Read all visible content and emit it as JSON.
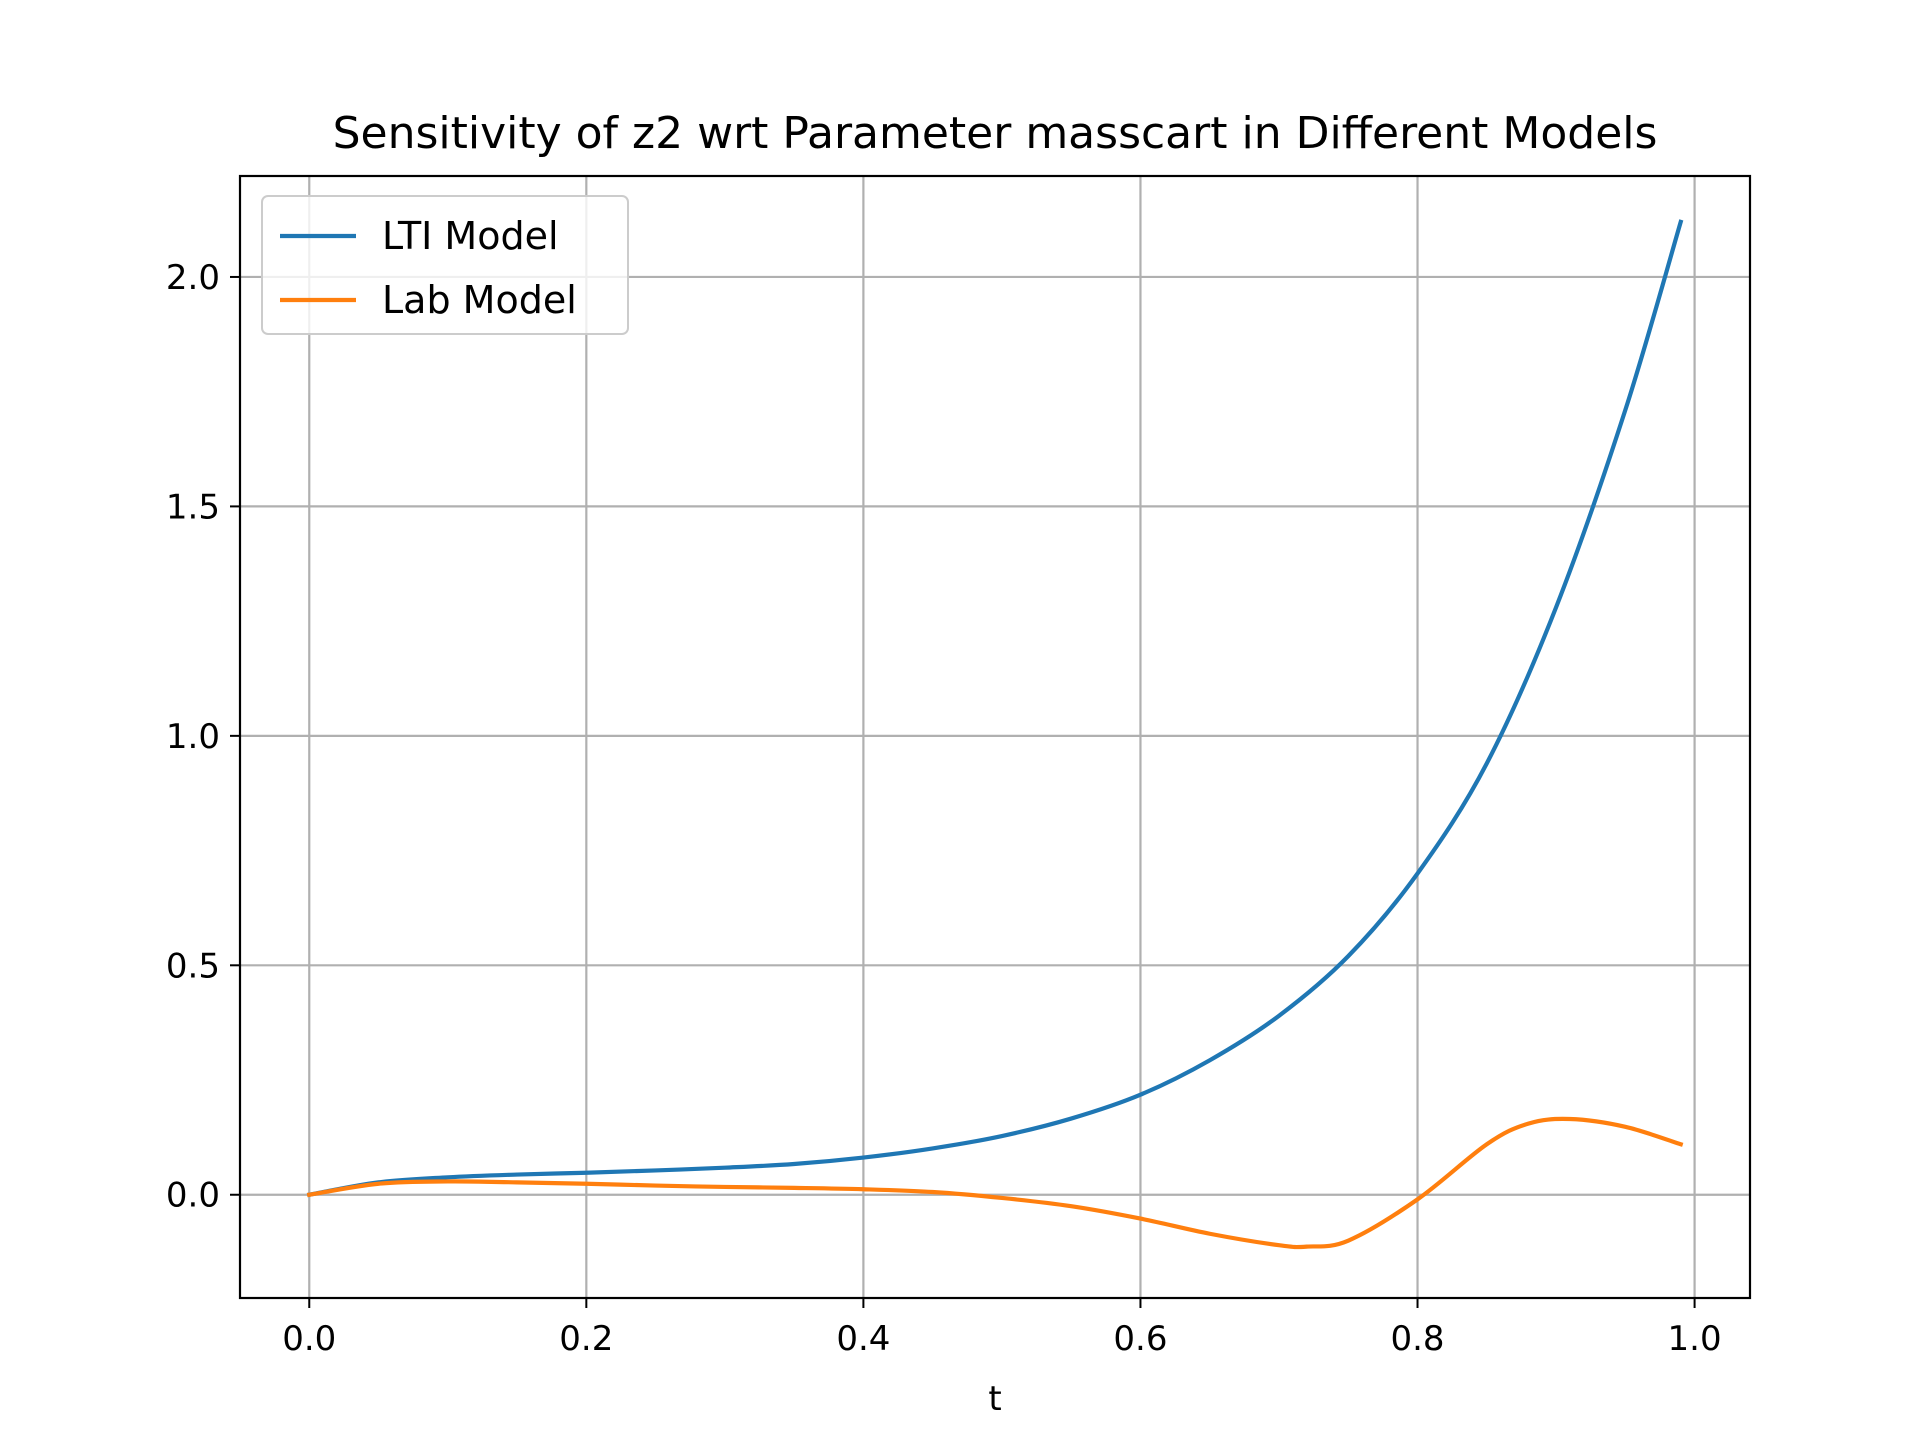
{
  "chart_data": {
    "type": "line",
    "title": "Sensitivity of z2 wrt Parameter masscart in Different Models",
    "xlabel": "t",
    "ylabel": "",
    "xlim": [
      -0.05,
      1.04
    ],
    "ylim": [
      -0.225,
      2.22
    ],
    "xticks": [
      0.0,
      0.2,
      0.4,
      0.6,
      0.8,
      1.0
    ],
    "xtick_labels": [
      "0.0",
      "0.2",
      "0.4",
      "0.6",
      "0.8",
      "1.0"
    ],
    "yticks": [
      0.0,
      0.5,
      1.0,
      1.5,
      2.0
    ],
    "ytick_labels": [
      "0.0",
      "0.5",
      "1.0",
      "1.5",
      "2.0"
    ],
    "grid": true,
    "legend_position": "top-left",
    "series": [
      {
        "name": "LTI Model",
        "color": "#1f77b4",
        "x": [
          0.0,
          0.05,
          0.1,
          0.15,
          0.2,
          0.25,
          0.3,
          0.35,
          0.4,
          0.45,
          0.5,
          0.55,
          0.6,
          0.65,
          0.7,
          0.75,
          0.8,
          0.85,
          0.9,
          0.95,
          0.99
        ],
        "y": [
          0.0,
          0.027,
          0.038,
          0.044,
          0.048,
          0.053,
          0.059,
          0.067,
          0.081,
          0.101,
          0.128,
          0.166,
          0.218,
          0.293,
          0.39,
          0.52,
          0.7,
          0.94,
          1.28,
          1.71,
          2.12
        ]
      },
      {
        "name": "Lab Model",
        "color": "#ff7f0e",
        "x": [
          0.0,
          0.05,
          0.1,
          0.15,
          0.2,
          0.25,
          0.3,
          0.35,
          0.4,
          0.45,
          0.5,
          0.55,
          0.6,
          0.65,
          0.7,
          0.72,
          0.75,
          0.8,
          0.85,
          0.88,
          0.91,
          0.95,
          0.99
        ],
        "y": [
          0.0,
          0.024,
          0.029,
          0.027,
          0.024,
          0.02,
          0.017,
          0.015,
          0.012,
          0.006,
          -0.007,
          -0.025,
          -0.052,
          -0.085,
          -0.11,
          -0.113,
          -0.1,
          -0.01,
          0.11,
          0.155,
          0.165,
          0.148,
          0.11
        ]
      }
    ]
  }
}
